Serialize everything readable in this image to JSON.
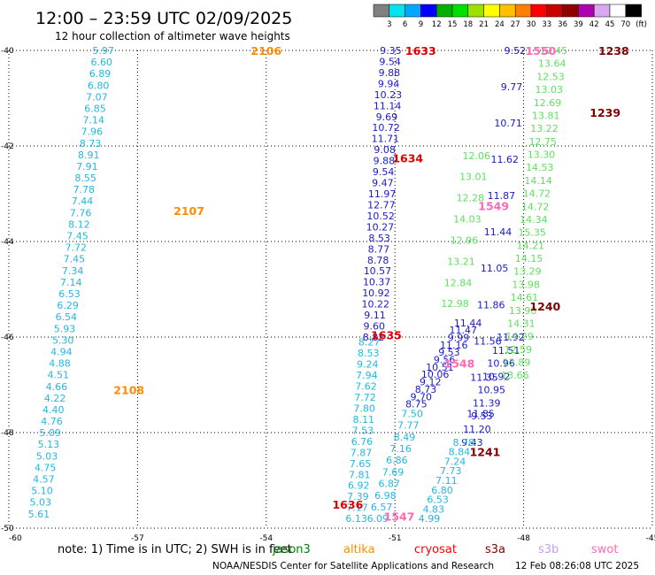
{
  "title": "12:00 – 23:59 UTC 02/09/2025",
  "subtitle": "12 hour collection of altimeter wave heights",
  "note": "note: 1) Time is in UTC; 2) SWH is in feet",
  "credit_left": "NOAA/NESDIS Center for Satellite Applications and Research",
  "credit_right": "12 Feb 08:26:08 UTC 2025",
  "satellites": [
    {
      "name": "jason3",
      "label": "jason3",
      "color": "#008000"
    },
    {
      "name": "altika",
      "label": "altika",
      "color": "#ff8c00"
    },
    {
      "name": "cryosat",
      "label": "cryosat",
      "color": "#ff0000"
    },
    {
      "name": "s3a",
      "label": "s3a",
      "color": "#800000"
    },
    {
      "name": "s3b",
      "label": "s3b",
      "color": "#c8a0e6"
    },
    {
      "name": "swot",
      "label": "swot",
      "color": "#ff69b4"
    }
  ],
  "colorbar": {
    "labels": [
      "3",
      "6",
      "9",
      "12",
      "15",
      "18",
      "21",
      "24",
      "27",
      "30",
      "33",
      "36",
      "39",
      "42",
      "45",
      "70",
      "(ft)"
    ],
    "colors": [
      "#808080",
      "#00e5ee",
      "#00a8ff",
      "#0000ff",
      "#00b000",
      "#00e000",
      "#a0e000",
      "#ffff00",
      "#ffc000",
      "#ff8000",
      "#ff0000",
      "#c80000",
      "#900000",
      "#b000b0",
      "#d8a8f0",
      "#ffffff",
      "#000000"
    ]
  },
  "chart_data": {
    "type": "scatter",
    "xlabel": "",
    "ylabel": "",
    "xlim": [
      -60,
      -45
    ],
    "ylim": [
      -50,
      -40
    ],
    "x_ticks": [
      "-60",
      "-57",
      "-54",
      "-51",
      "-48",
      "-45"
    ],
    "y_ticks": [
      "-40",
      "-42",
      "-44",
      "-46",
      "-48",
      "-50"
    ],
    "grid": true,
    "tracks": [
      {
        "color": "#20b8e0",
        "x0": -57.8,
        "y0": -40.0,
        "x1": -59.3,
        "y1": -49.7,
        "values": [
          "5.97",
          "6.60",
          "6.89",
          "6.80",
          "7.07",
          "6.85",
          "7.14",
          "7.96",
          "8.73",
          "8.91",
          "7.91",
          "8.55",
          "7.78",
          "7.44",
          "7.76",
          "8.12",
          "7.45",
          "7.72",
          "7.45",
          "7.34",
          "7.14",
          "6.53",
          "6.29",
          "6.54",
          "5.93",
          "5.30",
          "4.94",
          "4.88",
          "4.51",
          "4.66",
          "4.22",
          "4.40",
          "4.76",
          "5.09",
          "5.13",
          "5.03",
          "4.75",
          "4.57",
          "5.10",
          "5.03",
          "5.61"
        ]
      },
      {
        "color": "#1a1ac8",
        "x0": -51.1,
        "y0": -40.0,
        "x1": -51.5,
        "y1": -46.0,
        "values": [
          "9.35",
          "9.54",
          "9.88",
          "9.94",
          "10.23",
          "11.14",
          "9.69",
          "10.72",
          "11.71",
          "9.08",
          "9.88",
          "9.54",
          "9.47",
          "11.97",
          "12.77",
          "10.52",
          "10.27",
          "8.53",
          "8.77",
          "8.78",
          "10.57",
          "10.37",
          "10.92",
          "10.22",
          "9.11",
          "9.60",
          "8.82"
        ]
      },
      {
        "color": "#20b8e0",
        "x0": -51.6,
        "y0": -46.1,
        "x1": -51.9,
        "y1": -49.8,
        "values": [
          "8.27",
          "8.53",
          "9.24",
          "7.94",
          "7.62",
          "7.72",
          "7.80",
          "8.11",
          "7.53",
          "6.76",
          "7.87",
          "7.65",
          "7.81",
          "6.92",
          "7.39",
          "7.17",
          "6.13"
        ]
      },
      {
        "color": "#20b8e0",
        "x0": -50.6,
        "y0": -47.6,
        "x1": -51.4,
        "y1": -49.8,
        "values": [
          "7.50",
          "7.77",
          "8.49",
          "7.16",
          "6.86",
          "7.69",
          "6.87",
          "6.98",
          "6.57",
          "6.09"
        ]
      },
      {
        "color": "#1a1ac8",
        "x0": -48.2,
        "y0": -40.0,
        "x1": -49.0,
        "y1": -47.6,
        "values": [
          "9.52",
          "9.77",
          "10.71",
          "11.62",
          "11.87",
          "11.44",
          "11.05",
          "11.86",
          "11.56",
          "11.35",
          "11.85"
        ]
      },
      {
        "color": "#1a1ac8",
        "x0": -49.3,
        "y0": -45.7,
        "x1": -50.5,
        "y1": -47.4,
        "values": [
          "11.44",
          "11.47",
          "9.99",
          "11.16",
          "9.53",
          "9.56",
          "10.51",
          "10.06",
          "9.12",
          "8.73",
          "9.70",
          "8.75"
        ]
      },
      {
        "color": "#1a1ac8",
        "x0": -48.3,
        "y0": -46.0,
        "x1": -49.2,
        "y1": -48.2,
        "values": [
          "11.92",
          "11.51",
          "10.96",
          "10.92",
          "10.95",
          "11.39",
          "9.53",
          "11.20",
          "9.43"
        ]
      },
      {
        "color": "#20b8e0",
        "x0": -49.4,
        "y0": -48.2,
        "x1": -50.2,
        "y1": -49.8,
        "values": [
          "8.78",
          "8.84",
          "7.24",
          "7.73",
          "7.11",
          "6.80",
          "6.53",
          "4.83",
          "4.99"
        ]
      },
      {
        "color": "#5ee05e",
        "x0": -47.3,
        "y0": -40.0,
        "x1": -48.2,
        "y1": -46.8,
        "values": [
          "12.45",
          "13.64",
          "12.53",
          "13.03",
          "12.69",
          "13.81",
          "13.22",
          "12.75",
          "13.30",
          "14.53",
          "14.14",
          "14.72",
          "14.72",
          "14.34",
          "15.35",
          "14.21",
          "14.15",
          "13.29",
          "13.98",
          "14.61",
          "13.90",
          "14.31",
          "14.29",
          "12.59",
          "12.89",
          "13.66"
        ]
      },
      {
        "color": "#5ee05e",
        "x0": -49.1,
        "y0": -42.2,
        "x1": -49.6,
        "y1": -45.3,
        "values": [
          "12.06",
          "13.01",
          "12.28",
          "14.03",
          "12.96",
          "13.21",
          "12.84",
          "12.98"
        ]
      }
    ],
    "track_labels": [
      {
        "text": "2106",
        "x": -54.0,
        "y": -40.0,
        "color": "#ff8c00"
      },
      {
        "text": "1633",
        "x": -50.4,
        "y": -40.0,
        "color": "#e00000"
      },
      {
        "text": "1550",
        "x": -47.6,
        "y": -40.0,
        "color": "#ff69b4"
      },
      {
        "text": "1238",
        "x": -45.9,
        "y": -40.0,
        "color": "#800000"
      },
      {
        "text": "1239",
        "x": -46.1,
        "y": -41.3,
        "color": "#800000"
      },
      {
        "text": "1634",
        "x": -50.7,
        "y": -42.25,
        "color": "#e00000"
      },
      {
        "text": "2107",
        "x": -55.8,
        "y": -43.35,
        "color": "#ff8c00"
      },
      {
        "text": "1549",
        "x": -48.7,
        "y": -43.25,
        "color": "#ff69b4"
      },
      {
        "text": "1240",
        "x": -47.5,
        "y": -45.35,
        "color": "#800000"
      },
      {
        "text": "1635",
        "x": -51.2,
        "y": -45.95,
        "color": "#e00000"
      },
      {
        "text": "1548",
        "x": -49.5,
        "y": -46.55,
        "color": "#ff69b4"
      },
      {
        "text": "2108",
        "x": -57.2,
        "y": -47.1,
        "color": "#ff8c00"
      },
      {
        "text": "1241",
        "x": -48.9,
        "y": -48.4,
        "color": "#800000"
      },
      {
        "text": "1636",
        "x": -52.1,
        "y": -49.5,
        "color": "#e00000"
      },
      {
        "text": "1547",
        "x": -50.9,
        "y": -49.75,
        "color": "#ff69b4"
      }
    ]
  }
}
